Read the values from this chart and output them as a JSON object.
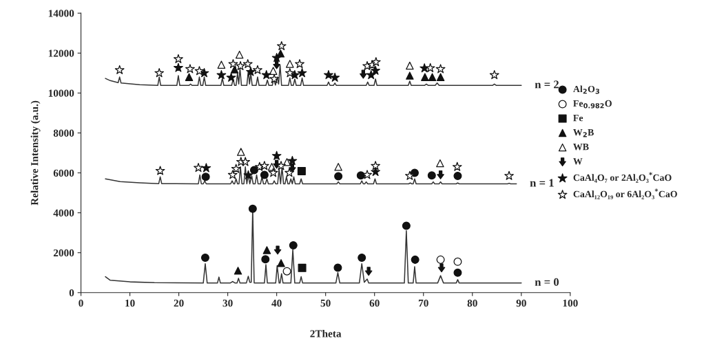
{
  "chart_data": {
    "type": "line",
    "xlabel": "2Theta",
    "ylabel": "Relative Intensity (a.u.)",
    "xlim": [
      0,
      100
    ],
    "xticks": [
      0,
      10,
      20,
      30,
      40,
      50,
      60,
      70,
      80,
      90,
      100
    ],
    "ylim": [
      0,
      14000
    ],
    "yticks": [
      0,
      2000,
      4000,
      6000,
      8000,
      10000,
      12000,
      14000
    ],
    "grid": false,
    "legend": "right",
    "annotations": [
      "n = 2",
      "n = 1",
      "n = 0"
    ],
    "series": [
      {
        "color": "#333333",
        "x": [
          5,
          6,
          10,
          15,
          25.0,
          25.4,
          25.8,
          27.9,
          28.2,
          28.5,
          30.5,
          31,
          31.5,
          31.9,
          32.2,
          32.5,
          33.8,
          34.2,
          34.5,
          34.8,
          35.1,
          35.4,
          37.5,
          37.8,
          38.1,
          39.8,
          40.1,
          40.5,
          40.7,
          41.0,
          41.3,
          42.9,
          43.3,
          43.7,
          44.7,
          45.0,
          45.3,
          52.1,
          52.5,
          52.9,
          56.9,
          57.4,
          57.9,
          58.5,
          58.8,
          66.1,
          66.5,
          66.9,
          67.9,
          68.2,
          68.5,
          72.9,
          73.5,
          74.1,
          76.7,
          77,
          77.3,
          90
        ],
        "values": [
          800,
          620,
          540,
          500,
          480,
          1450,
          480,
          480,
          780,
          480,
          480,
          560,
          480,
          480,
          720,
          480,
          480,
          820,
          520,
          520,
          4200,
          480,
          480,
          1400,
          480,
          480,
          1350,
          480,
          480,
          950,
          480,
          480,
          2150,
          480,
          480,
          800,
          480,
          480,
          1000,
          480,
          480,
          1450,
          520,
          680,
          480,
          480,
          3100,
          480,
          480,
          1300,
          480,
          480,
          850,
          480,
          480,
          650,
          480,
          480
        ]
      },
      {
        "color": "#333333",
        "x": [
          5,
          8,
          12,
          15.9,
          16.2,
          16.5,
          24.0,
          24.3,
          24.6,
          25.0,
          25.3,
          25.6,
          30.6,
          30.9,
          31.2,
          31.4,
          31.7,
          32.0,
          32.3,
          32.6,
          32.9,
          33.3,
          33.6,
          33.9,
          34.2,
          34.5,
          34.9,
          35.2,
          35.6,
          35.9,
          36.2,
          36.7,
          37.0,
          37.3,
          37.7,
          38.0,
          38.3,
          39.2,
          39.5,
          39.8,
          40.2,
          40.5,
          40.8,
          41.1,
          41.4,
          41.7,
          42.0,
          42.3,
          42.6,
          42.9,
          43.2,
          43.5,
          43.8,
          44.7,
          45.0,
          45.3,
          52.3,
          52.6,
          52.9,
          57.1,
          57.4,
          57.7,
          58.0,
          58.3,
          58.6,
          59.8,
          60.1,
          60.4,
          67.0,
          67.3,
          67.6,
          67.9,
          68.2,
          68.5,
          71.7,
          72.0,
          72.3,
          73.2,
          73.5,
          73.8,
          76.7,
          77.0,
          77.3,
          87.2,
          87.5,
          87.8,
          89
        ],
        "values": [
          5700,
          5560,
          5500,
          5460,
          5800,
          5460,
          5450,
          5900,
          5450,
          5450,
          5600,
          5450,
          5450,
          5600,
          5450,
          5450,
          5700,
          5450,
          5450,
          6300,
          5450,
          5450,
          6300,
          5450,
          5900,
          5450,
          5850,
          5450,
          5450,
          5900,
          5450,
          5450,
          5800,
          5450,
          5450,
          5700,
          5450,
          5450,
          5600,
          5450,
          5450,
          6200,
          5450,
          6300,
          5450,
          5450,
          5800,
          5450,
          5450,
          5700,
          5450,
          5800,
          5450,
          5450,
          5700,
          5450,
          5450,
          5550,
          5450,
          5450,
          5600,
          5450,
          5450,
          5550,
          5450,
          5450,
          5700,
          5450,
          5450,
          5500,
          5450,
          5450,
          5700,
          5450,
          5450,
          5550,
          5450,
          5450,
          5550,
          5450,
          5450,
          5500,
          5450,
          5450,
          5480,
          5450,
          5450
        ]
      },
      {
        "color": "#333333",
        "x": [
          5,
          6,
          7.6,
          7.9,
          8.2,
          12,
          15.7,
          16.0,
          16.3,
          19.6,
          19.9,
          20.2,
          22.1,
          22.4,
          22.7,
          23.9,
          24.2,
          24.5,
          24.9,
          25.2,
          25.5,
          28.6,
          28.9,
          29.2,
          30.8,
          31.1,
          31.4,
          31.7,
          32.0,
          32.25,
          32.5,
          32.8,
          33.9,
          34.2,
          34.45,
          34.7,
          35.0,
          35.8,
          36.1,
          36.4,
          37.8,
          38.1,
          38.4,
          39.1,
          39.4,
          39.75,
          40.1,
          40.4,
          40.7,
          41.0,
          42.4,
          42.7,
          43.0,
          43.4,
          43.7,
          44.0,
          44.9,
          45.2,
          45.5,
          50.3,
          50.6,
          50.9,
          51.6,
          51.9,
          52.2,
          58.3,
          58.6,
          58.9,
          59.9,
          60.2,
          60.5,
          66.9,
          67.2,
          67.5,
          70.2,
          70.6,
          71.0,
          72.4,
          72.8,
          73.2,
          84.1,
          84.5,
          84.9,
          90
        ],
        "values": [
          10730,
          10620,
          10520,
          10800,
          10500,
          10420,
          10380,
          10800,
          10380,
          10380,
          10870,
          10380,
          10380,
          10450,
          10380,
          10380,
          10800,
          10380,
          10380,
          10800,
          10380,
          10380,
          10750,
          10380,
          10380,
          10700,
          10380,
          10380,
          11000,
          10450,
          11250,
          10380,
          10380,
          11100,
          10450,
          11000,
          10380,
          10380,
          10800,
          10380,
          10380,
          10650,
          10380,
          10380,
          10700,
          10400,
          10800,
          10450,
          11400,
          10380,
          10380,
          10750,
          10380,
          10380,
          10700,
          10380,
          10380,
          10750,
          10380,
          10380,
          10550,
          10380,
          10380,
          10500,
          10380,
          10380,
          10550,
          10380,
          10380,
          10700,
          10380,
          10380,
          10600,
          10380,
          10380,
          10450,
          10380,
          10380,
          10500,
          10380,
          10380,
          10450,
          10380,
          10380
        ]
      },
      {
        "type": "scatter",
        "name": "Al$_{2}$O$_{3}$",
        "marker": "circle",
        "color": "#111111",
        "x": [
          25.4,
          35.1,
          37.7,
          43.4,
          52.5,
          57.4,
          66.5,
          68.3,
          77,
          25.5,
          35.4,
          37.5,
          52.6,
          57.2,
          68.2,
          71.7,
          77
        ],
        "values": [
          1750,
          4200,
          1670,
          2370,
          1250,
          1750,
          3350,
          1650,
          1000,
          5800,
          6140,
          5900,
          5830,
          5870,
          6000,
          5870,
          5850
        ]
      },
      {
        "type": "scatter",
        "name": "Fe$_{0.982}$O",
        "marker": "circle",
        "color": "#ffffff",
        "x": [
          42.1,
          73.5,
          77
        ],
        "values": [
          1070,
          1650,
          1550
        ]
      },
      {
        "type": "scatter",
        "name": "Fe",
        "marker": "square",
        "color": "#111111",
        "x": [
          45.2,
          45.1
        ],
        "values": [
          1240,
          6090
        ]
      },
      {
        "type": "scatter",
        "name": "W$_{2}$B",
        "marker": "triangle",
        "color": "#111111",
        "x": [
          32.1,
          38.0,
          40.9,
          22.1,
          31.4,
          40.8,
          67.2,
          70.3,
          71.8,
          73.5
        ],
        "values": [
          1100,
          2130,
          1480,
          10800,
          11180,
          11980,
          10870,
          10800,
          10800,
          10800
        ]
      },
      {
        "type": "scatter",
        "name": "WB",
        "marker": "triangle",
        "color": "#ffffff",
        "x": [
          28.7,
          32.4,
          39.3,
          42.7,
          67.2,
          32.7,
          39.0,
          42.1,
          52.6,
          73.4
        ],
        "values": [
          11420,
          11920,
          11110,
          11460,
          11370,
          7050,
          6300,
          6540,
          6300,
          6480
        ]
      },
      {
        "type": "scatter",
        "name": "W",
        "color": "#111111",
        "x": [
          40.2,
          58.8,
          73.7,
          40.0,
          43.2,
          73.5,
          40.0,
          57.7
        ],
        "values": [
          2130,
          1070,
          1240,
          6430,
          6240,
          5900,
          11420,
          10940
        ]
      },
      {
        "type": "scatter",
        "name": "CaAl₄O₇ or 2Al₂O₃$^{*}$CaO",
        "marker": "star",
        "color": "#111111",
        "x": [
          19.9,
          25.2,
          28.7,
          30.7,
          34.7,
          37.9,
          40.0,
          43.7,
          45.2,
          50.6,
          51.9,
          59.3,
          60.2,
          70.2,
          25.6,
          34.2,
          40.0,
          43.2,
          60.2
        ],
        "values": [
          11260,
          11000,
          10900,
          10770,
          11060,
          10900,
          11760,
          10900,
          11000,
          10900,
          10770,
          10900,
          11120,
          11240,
          6240,
          5880,
          6850,
          6600,
          6050
        ]
      },
      {
        "type": "scatter",
        "name": "CaAl₁₂O₁₉ or 6Al₂O₃$^{*}$CaO",
        "marker": "star",
        "color": "#ffffff",
        "x": [
          7.9,
          16.0,
          19.9,
          22.3,
          24.2,
          31.1,
          32.6,
          34.1,
          36.1,
          39.5,
          41.0,
          42.7,
          44.7,
          58.5,
          59.5,
          60.3,
          71.4,
          73.5,
          84.5,
          16.2,
          24.0,
          31.0,
          31.7,
          32.7,
          33.6,
          36.5,
          37.5,
          39.3,
          40.9,
          42.6,
          58.5,
          60.2,
          67.2,
          76.9,
          87.5
        ],
        "values": [
          11150,
          11000,
          11700,
          11200,
          11100,
          11450,
          11350,
          11450,
          11150,
          10700,
          12350,
          11000,
          11450,
          11350,
          11400,
          11550,
          11250,
          11200,
          10900,
          6100,
          6250,
          5900,
          6200,
          6550,
          6550,
          6300,
          6350,
          6000,
          6350,
          6000,
          5900,
          6350,
          5850,
          6300,
          5850
        ]
      }
    ]
  }
}
